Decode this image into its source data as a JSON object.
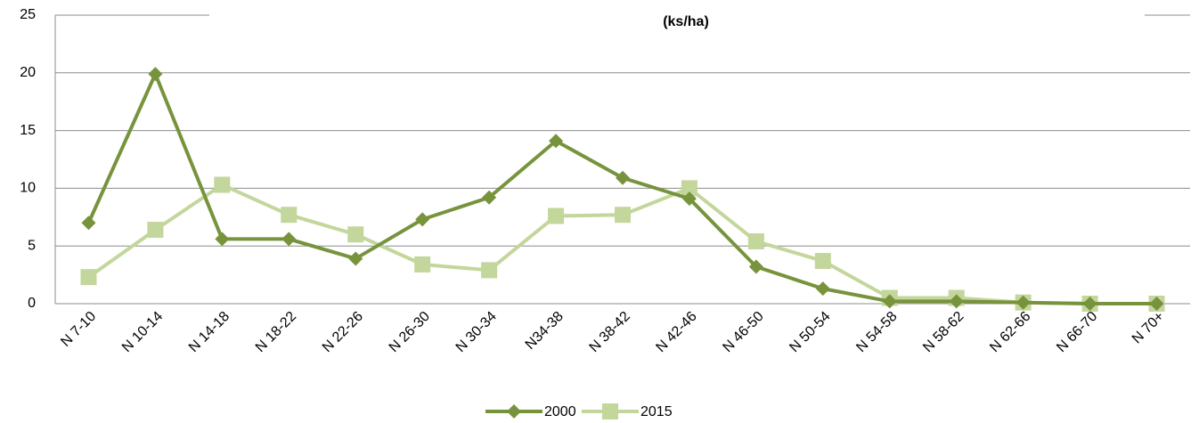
{
  "chart_data": {
    "type": "line",
    "title": "(ks/ha)",
    "categories": [
      "N 7-10",
      "N 10-14",
      "N 14-18",
      "N 18-22",
      "N 22-26",
      "N 26-30",
      "N 30-34",
      "N34-38",
      "N 38-42",
      "N 42-46",
      "N 46-50",
      "N 50-54",
      "N 54-58",
      "N 58-62",
      "N 62-66",
      "N 66-70",
      "N 70+"
    ],
    "series": [
      {
        "name": "2000",
        "color": "#77933c",
        "marker": "diamond",
        "values": [
          7,
          19.9,
          5.6,
          5.6,
          3.9,
          7.3,
          9.2,
          14.1,
          10.9,
          9.1,
          3.2,
          1.3,
          0.2,
          0.2,
          0.1,
          0,
          0
        ]
      },
      {
        "name": "2015",
        "color": "#c3d69b",
        "marker": "square",
        "values": [
          2.3,
          6.4,
          10.3,
          7.7,
          6,
          3.4,
          2.9,
          7.6,
          7.7,
          10,
          5.4,
          3.7,
          0.5,
          0.5,
          0.1,
          0,
          0
        ]
      }
    ],
    "ylim": [
      0,
      25
    ],
    "yticks": [
      0,
      5,
      10,
      15,
      20,
      25
    ],
    "grid": true,
    "legend": "bottom"
  }
}
